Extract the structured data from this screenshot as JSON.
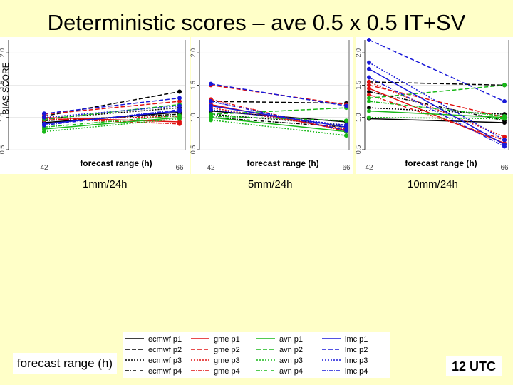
{
  "title": "Deterministic scores – ave 0.5 x 0.5 IT+SV",
  "ylabel": "BIAS SCORE",
  "xlabel": "forecast range (h)",
  "footer_left": "forecast range (h)",
  "footer_right": "12 UTC",
  "colors": {
    "ecmwf": "#000000",
    "gme": "#e01010",
    "avn": "#18b818",
    "lmc": "#1818d8"
  },
  "chart_data": [
    {
      "type": "line",
      "panel_label": "1mm/24h",
      "x": [
        42,
        66
      ],
      "xlabel": "forecast range (h)",
      "ylabel": "BIAS SCORE",
      "ylim": [
        0.5,
        2.2
      ],
      "yticks": [
        "0.5",
        "1.0",
        "1.5",
        "2.0"
      ],
      "xticks": [
        "42",
        "66"
      ],
      "series": [
        {
          "name": "ecmwf p1",
          "group": "ecmwf",
          "values": [
            0.92,
            1.08
          ]
        },
        {
          "name": "ecmwf p2",
          "group": "ecmwf",
          "values": [
            1.02,
            1.4
          ]
        },
        {
          "name": "ecmwf p3",
          "group": "ecmwf",
          "values": [
            0.98,
            1.15
          ]
        },
        {
          "name": "ecmwf p4",
          "group": "ecmwf",
          "values": [
            0.95,
            1.05
          ]
        },
        {
          "name": "gme p1",
          "group": "gme",
          "values": [
            1.0,
            0.93
          ]
        },
        {
          "name": "gme p2",
          "group": "gme",
          "values": [
            1.05,
            1.25
          ]
        },
        {
          "name": "gme p3",
          "group": "gme",
          "values": [
            0.96,
            1.02
          ]
        },
        {
          "name": "gme p4",
          "group": "gme",
          "values": [
            0.98,
            0.9
          ]
        },
        {
          "name": "avn p1",
          "group": "avn",
          "values": [
            0.82,
            1.0
          ]
        },
        {
          "name": "avn p2",
          "group": "avn",
          "values": [
            0.97,
            1.2
          ]
        },
        {
          "name": "avn p3",
          "group": "avn",
          "values": [
            0.78,
            0.98
          ]
        },
        {
          "name": "avn p4",
          "group": "avn",
          "values": [
            0.85,
            1.03
          ]
        },
        {
          "name": "lmc p1",
          "group": "lmc",
          "values": [
            0.9,
            1.1
          ]
        },
        {
          "name": "lmc p2",
          "group": "lmc",
          "values": [
            1.06,
            1.3
          ]
        },
        {
          "name": "lmc p3",
          "group": "lmc",
          "values": [
            1.0,
            1.18
          ]
        },
        {
          "name": "lmc p4",
          "group": "lmc",
          "values": [
            0.88,
            1.12
          ]
        }
      ]
    },
    {
      "type": "line",
      "panel_label": "5mm/24h",
      "x": [
        42,
        66
      ],
      "xlabel": "forecast range (h)",
      "ylabel": "",
      "ylim": [
        0.5,
        2.2
      ],
      "yticks": [
        "0.5",
        "1.0",
        "1.5",
        "2.0"
      ],
      "xticks": [
        "42",
        "66"
      ],
      "series": [
        {
          "name": "ecmwf p1",
          "group": "ecmwf",
          "values": [
            1.1,
            0.93
          ]
        },
        {
          "name": "ecmwf p2",
          "group": "ecmwf",
          "values": [
            1.25,
            1.22
          ]
        },
        {
          "name": "ecmwf p3",
          "group": "ecmwf",
          "values": [
            1.05,
            0.88
          ]
        },
        {
          "name": "ecmwf p4",
          "group": "ecmwf",
          "values": [
            1.0,
            0.85
          ]
        },
        {
          "name": "gme p1",
          "group": "gme",
          "values": [
            1.2,
            0.8
          ]
        },
        {
          "name": "gme p2",
          "group": "gme",
          "values": [
            1.5,
            1.2
          ]
        },
        {
          "name": "gme p3",
          "group": "gme",
          "values": [
            1.15,
            0.82
          ]
        },
        {
          "name": "gme p4",
          "group": "gme",
          "values": [
            1.28,
            0.78
          ]
        },
        {
          "name": "avn p1",
          "group": "avn",
          "values": [
            1.0,
            0.78
          ]
        },
        {
          "name": "avn p2",
          "group": "avn",
          "values": [
            1.05,
            1.15
          ]
        },
        {
          "name": "avn p3",
          "group": "avn",
          "values": [
            0.96,
            0.72
          ]
        },
        {
          "name": "avn p4",
          "group": "avn",
          "values": [
            1.02,
            0.95
          ]
        },
        {
          "name": "lmc p1",
          "group": "lmc",
          "values": [
            1.18,
            0.85
          ]
        },
        {
          "name": "lmc p2",
          "group": "lmc",
          "values": [
            1.52,
            1.18
          ]
        },
        {
          "name": "lmc p3",
          "group": "lmc",
          "values": [
            1.12,
            0.88
          ]
        },
        {
          "name": "lmc p4",
          "group": "lmc",
          "values": [
            1.25,
            0.8
          ]
        }
      ]
    },
    {
      "type": "line",
      "panel_label": "10mm/24h",
      "x": [
        42,
        66
      ],
      "xlabel": "forecast range (h)",
      "ylabel": "",
      "ylim": [
        0.5,
        2.2
      ],
      "yticks": [
        "0.5",
        "1.0",
        "1.5",
        "2.0"
      ],
      "xticks": [
        "42",
        "66"
      ],
      "series": [
        {
          "name": "ecmwf p1",
          "group": "ecmwf",
          "values": [
            0.98,
            0.92
          ]
        },
        {
          "name": "ecmwf p2",
          "group": "ecmwf",
          "values": [
            1.55,
            1.5
          ]
        },
        {
          "name": "ecmwf p3",
          "group": "ecmwf",
          "values": [
            1.15,
            1.05
          ]
        },
        {
          "name": "ecmwf p4",
          "group": "ecmwf",
          "values": [
            1.4,
            0.95
          ]
        },
        {
          "name": "gme p1",
          "group": "gme",
          "values": [
            1.45,
            0.6
          ]
        },
        {
          "name": "gme p2",
          "group": "gme",
          "values": [
            1.5,
            1.0
          ]
        },
        {
          "name": "gme p3",
          "group": "gme",
          "values": [
            1.55,
            0.7
          ]
        },
        {
          "name": "gme p4",
          "group": "gme",
          "values": [
            1.35,
            0.65
          ]
        },
        {
          "name": "avn p1",
          "group": "avn",
          "values": [
            1.1,
            1.0
          ]
        },
        {
          "name": "avn p2",
          "group": "avn",
          "values": [
            1.3,
            1.5
          ]
        },
        {
          "name": "avn p3",
          "group": "avn",
          "values": [
            1.0,
            0.98
          ]
        },
        {
          "name": "avn p4",
          "group": "avn",
          "values": [
            1.25,
            1.02
          ]
        },
        {
          "name": "lmc p1",
          "group": "lmc",
          "values": [
            1.75,
            0.58
          ]
        },
        {
          "name": "lmc p2",
          "group": "lmc",
          "values": [
            2.2,
            1.25
          ]
        },
        {
          "name": "lmc p3",
          "group": "lmc",
          "values": [
            1.85,
            0.65
          ]
        },
        {
          "name": "lmc p4",
          "group": "lmc",
          "values": [
            1.62,
            0.55
          ]
        }
      ]
    }
  ],
  "legend": [
    [
      "ecmwf p1",
      "ecmwf p2",
      "ecmwf p3",
      "ecmwf p4"
    ],
    [
      "gme p1",
      "gme p2",
      "gme p3",
      "gme p4"
    ],
    [
      "avn p1",
      "avn p2",
      "avn p3",
      "avn p4"
    ],
    [
      "lmc p1",
      "lmc p2",
      "lmc p3",
      "lmc p4"
    ]
  ]
}
